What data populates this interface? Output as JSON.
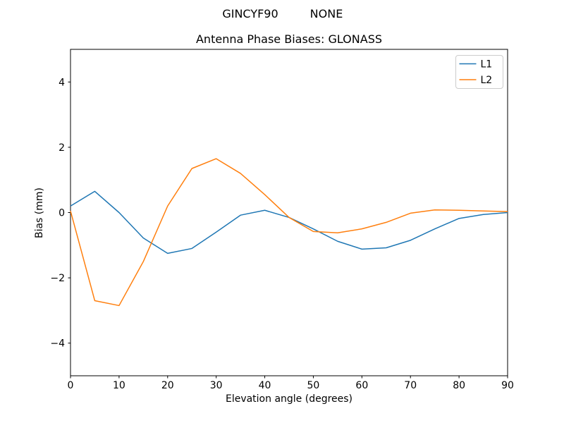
{
  "figure": {
    "background": "#ffffff",
    "suptitle_left": "GINCYF90",
    "suptitle_right": "NONE"
  },
  "chart_data": {
    "type": "line",
    "title": "Antenna Phase Biases: GLONASS",
    "xlabel": "Elevation angle (degrees)",
    "ylabel": "Bias (mm)",
    "xlim": [
      0,
      90
    ],
    "ylim": [
      -5,
      5
    ],
    "x_ticks": [
      0,
      10,
      20,
      30,
      40,
      50,
      60,
      70,
      80,
      90
    ],
    "x_tick_labels": [
      "0",
      "10",
      "20",
      "30",
      "40",
      "50",
      "60",
      "70",
      "80",
      "90"
    ],
    "y_ticks": [
      -4,
      -2,
      0,
      2,
      4
    ],
    "y_tick_labels": [
      "−4",
      "−2",
      "0",
      "2",
      "4"
    ],
    "grid": false,
    "legend": {
      "position": "upper right",
      "border_color": "#cccccc",
      "background": "#ffffff"
    },
    "x": [
      0,
      5,
      10,
      15,
      20,
      25,
      30,
      35,
      40,
      45,
      50,
      55,
      60,
      65,
      70,
      75,
      80,
      85,
      90
    ],
    "series": [
      {
        "name": "L1",
        "color": "#1f77b4",
        "values": [
          0.2,
          0.65,
          0.0,
          -0.78,
          -1.25,
          -1.1,
          -0.6,
          -0.08,
          0.07,
          -0.15,
          -0.5,
          -0.88,
          -1.12,
          -1.08,
          -0.85,
          -0.5,
          -0.18,
          -0.06,
          0.0
        ]
      },
      {
        "name": "L2",
        "color": "#ff7f0e",
        "values": [
          0.05,
          -2.7,
          -2.85,
          -1.5,
          0.2,
          1.35,
          1.65,
          1.2,
          0.55,
          -0.15,
          -0.58,
          -0.62,
          -0.5,
          -0.3,
          -0.02,
          0.08,
          0.07,
          0.05,
          0.03
        ]
      }
    ]
  }
}
